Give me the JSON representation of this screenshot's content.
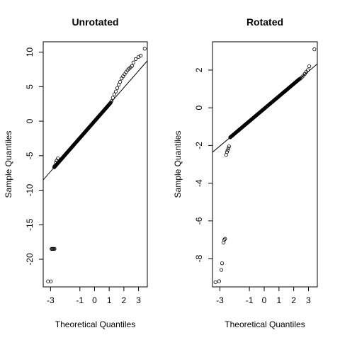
{
  "chart_data": [
    {
      "type": "scatter",
      "subtype": "qq-plot",
      "title": "Unrotated",
      "xlabel": "Theoretical Quantiles",
      "ylabel": "Sample Quantiles",
      "xlim": [
        -3.5,
        3.6
      ],
      "ylim": [
        -24,
        11.5
      ],
      "xticks": [
        -3,
        -1,
        0,
        1,
        2,
        3
      ],
      "yticks": [
        -20,
        -15,
        -10,
        -5,
        0,
        5,
        10
      ],
      "grid": false,
      "legend": "none",
      "reference_line": {
        "slope": 2.43,
        "intercept": 0.0
      },
      "bulk_band": {
        "x_from": -2.75,
        "x_to": 1.1,
        "slope": 2.43,
        "intercept": 0.0
      },
      "points": [
        [
          -3.17,
          -23.2
        ],
        [
          -2.98,
          -23.2
        ],
        [
          -2.93,
          -18.5
        ],
        [
          -2.88,
          -18.5
        ],
        [
          -2.83,
          -18.5
        ],
        [
          -2.78,
          -18.5
        ],
        [
          -2.73,
          -18.5
        ],
        [
          -2.72,
          -6.5
        ],
        [
          -2.65,
          -6.0
        ],
        [
          -2.58,
          -5.7
        ],
        [
          -2.5,
          -5.4
        ],
        [
          1.15,
          2.9
        ],
        [
          1.25,
          3.4
        ],
        [
          1.35,
          3.9
        ],
        [
          1.45,
          4.3
        ],
        [
          1.55,
          4.8
        ],
        [
          1.65,
          5.3
        ],
        [
          1.75,
          5.7
        ],
        [
          1.85,
          6.2
        ],
        [
          1.95,
          6.5
        ],
        [
          2.05,
          6.8
        ],
        [
          2.15,
          7.1
        ],
        [
          2.25,
          7.4
        ],
        [
          2.35,
          7.6
        ],
        [
          2.45,
          7.8
        ],
        [
          2.55,
          8.0
        ],
        [
          2.65,
          8.5
        ],
        [
          2.8,
          9.0
        ],
        [
          3.0,
          9.3
        ],
        [
          3.15,
          9.5
        ],
        [
          3.42,
          10.5
        ]
      ]
    },
    {
      "type": "scatter",
      "subtype": "qq-plot",
      "title": "Rotated",
      "xlabel": "Theoretical Quantiles",
      "ylabel": "Sample Quantiles",
      "xlim": [
        -3.5,
        3.6
      ],
      "ylim": [
        -9.5,
        3.5
      ],
      "xticks": [
        -3,
        -1,
        0,
        1,
        2,
        3
      ],
      "yticks": [
        -8,
        -6,
        -4,
        -2,
        0,
        2
      ],
      "grid": false,
      "legend": "none",
      "reference_line": {
        "slope": 0.66,
        "intercept": -0.05
      },
      "bulk_band": {
        "x_from": -2.3,
        "x_to": 2.4,
        "slope": 0.66,
        "intercept": -0.05
      },
      "points": [
        [
          -3.3,
          -9.25
        ],
        [
          -3.05,
          -9.2
        ],
        [
          -2.9,
          -8.6
        ],
        [
          -2.85,
          -8.25
        ],
        [
          -2.75,
          -7.15
        ],
        [
          -2.7,
          -7.0
        ],
        [
          -2.65,
          -6.95
        ],
        [
          -2.58,
          -2.5
        ],
        [
          -2.52,
          -2.35
        ],
        [
          -2.48,
          -2.25
        ],
        [
          -2.42,
          -2.15
        ],
        [
          -2.38,
          -2.05
        ],
        [
          2.45,
          1.55
        ],
        [
          2.55,
          1.62
        ],
        [
          2.65,
          1.7
        ],
        [
          2.75,
          1.8
        ],
        [
          2.85,
          1.9
        ],
        [
          2.95,
          2.0
        ],
        [
          3.05,
          2.2
        ],
        [
          3.4,
          3.1
        ]
      ]
    }
  ]
}
